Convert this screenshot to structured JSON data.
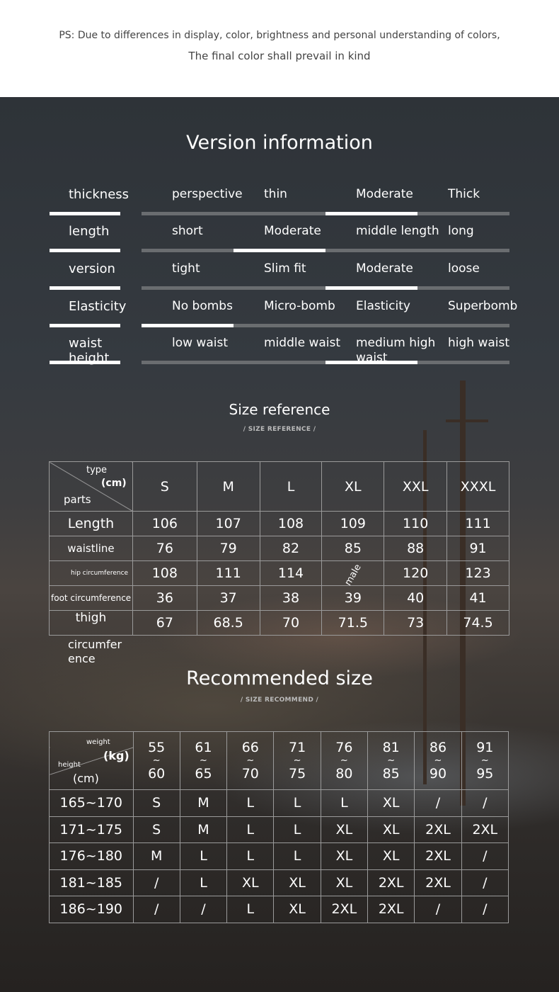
{
  "notice": {
    "line1": "PS: Due to differences in display, color, brightness and personal understanding of colors,",
    "line2": "The final color shall prevail in kind"
  },
  "version": {
    "title": "Version information",
    "rows": [
      {
        "label": "thickness",
        "options": [
          "perspective",
          "thin",
          "Moderate",
          "Thick"
        ],
        "selected": 2
      },
      {
        "label": "length",
        "options": [
          "short",
          "Moderate",
          "middle length",
          "long"
        ],
        "selected": 1
      },
      {
        "label": "version",
        "options": [
          "tight",
          "Slim fit",
          "Moderate",
          "loose"
        ],
        "selected": 2
      },
      {
        "label": "Elasticity",
        "options": [
          "No bombs",
          "Micro-bomb",
          "Elasticity",
          "Superbomb"
        ],
        "selected": 0
      },
      {
        "label": "waist height",
        "options": [
          "low waist",
          "middle waist",
          "medium high waist",
          "high waist"
        ],
        "selected": 2
      }
    ]
  },
  "size_reference": {
    "title": "Size reference",
    "subtitle": "/ SIZE REFERENCE /",
    "corner": {
      "type": "type",
      "unit": "(cm)",
      "parts": "parts"
    },
    "sizes": [
      "S",
      "M",
      "L",
      "XL",
      "XXL",
      "XXXL"
    ],
    "rows": [
      {
        "part": "Length",
        "values": [
          "106",
          "107",
          "108",
          "109",
          "110",
          "111"
        ]
      },
      {
        "part": "waistline",
        "values": [
          "76",
          "79",
          "82",
          "85",
          "88",
          "91"
        ]
      },
      {
        "part": "hip circumference",
        "values": [
          "108",
          "111",
          "114",
          "male",
          "120",
          "123"
        ]
      },
      {
        "part": "foot circumference",
        "values": [
          "36",
          "37",
          "38",
          "39",
          "40",
          "41"
        ]
      },
      {
        "part": "thigh",
        "values": [
          "67",
          "68.5",
          "70",
          "71.5",
          "73",
          "74.5"
        ]
      }
    ],
    "overflow_label": "circumfer ence"
  },
  "recommended": {
    "title": "Recommended size",
    "subtitle": "/ SIZE RECOMMEND /",
    "corner": {
      "weight": "weight",
      "weight_unit": "(kg)",
      "height": "height",
      "height_unit": "(cm)"
    },
    "weights": [
      [
        "55",
        "60"
      ],
      [
        "61",
        "65"
      ],
      [
        "66",
        "70"
      ],
      [
        "71",
        "75"
      ],
      [
        "76",
        "80"
      ],
      [
        "81",
        "85"
      ],
      [
        "86",
        "90"
      ],
      [
        "91",
        "95"
      ]
    ],
    "rows": [
      {
        "height": "165~170",
        "sizes": [
          "S",
          "M",
          "L",
          "L",
          "L",
          "XL",
          "/",
          "/"
        ]
      },
      {
        "height": "171~175",
        "sizes": [
          "S",
          "M",
          "L",
          "L",
          "XL",
          "XL",
          "2XL",
          "2XL"
        ]
      },
      {
        "height": "176~180",
        "sizes": [
          "M",
          "L",
          "L",
          "L",
          "XL",
          "XL",
          "2XL",
          "/"
        ]
      },
      {
        "height": "181~185",
        "sizes": [
          "/",
          "L",
          "XL",
          "XL",
          "XL",
          "2XL",
          "2XL",
          "/"
        ]
      },
      {
        "height": "186~190",
        "sizes": [
          "/",
          "/",
          "L",
          "XL",
          "2XL",
          "2XL",
          "/",
          "/"
        ]
      }
    ]
  }
}
